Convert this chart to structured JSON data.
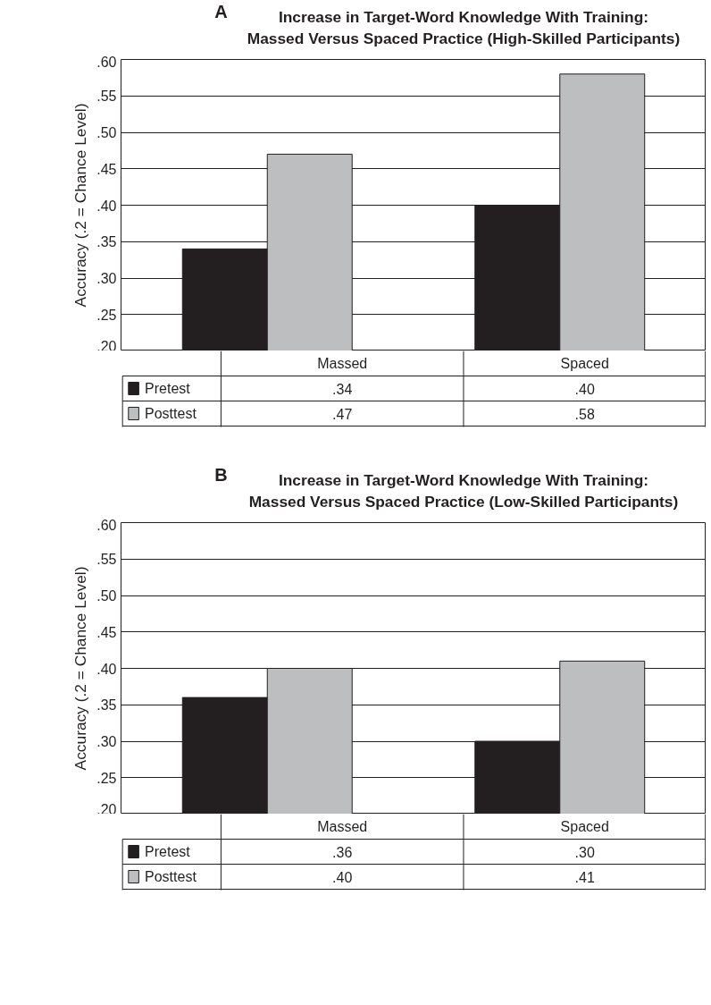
{
  "chart_data": [
    {
      "type": "bar",
      "title": "Increase in Target-Word Knowledge With Training: Massed Versus Spaced Practice (High-Skilled Participants)",
      "annotations": [
        "A"
      ],
      "ylabel": "Accuracy (.2 = Chance Level)",
      "categories": [
        "Massed",
        "Spaced"
      ],
      "series": [
        {
          "name": "Pretest",
          "color": "#231f20",
          "values": [
            0.34,
            0.4
          ],
          "value_labels": [
            ".34",
            ".40"
          ]
        },
        {
          "name": "Posttest",
          "color": "#bcbec0",
          "values": [
            0.47,
            0.58
          ],
          "value_labels": [
            ".47",
            ".58"
          ]
        }
      ],
      "ylim": [
        0.2,
        0.6
      ],
      "yticks": [
        {
          "value": 0.2,
          "label": ".20"
        },
        {
          "value": 0.25,
          "label": ".25"
        },
        {
          "value": 0.3,
          "label": ".30"
        },
        {
          "value": 0.35,
          "label": ".35"
        },
        {
          "value": 0.4,
          "label": ".40"
        },
        {
          "value": 0.45,
          "label": ".45"
        },
        {
          "value": 0.5,
          "label": ".50"
        },
        {
          "value": 0.55,
          "label": ".55"
        },
        {
          "value": 0.6,
          "label": ".60"
        }
      ],
      "grid": "y",
      "legend": "bottom left"
    },
    {
      "type": "bar",
      "title": "Increase in Target-Word Knowledge With Training: Massed Versus Spaced Practice (Low-Skilled Participants)",
      "annotations": [
        "B"
      ],
      "ylabel": "Accuracy (.2 = Chance Level)",
      "categories": [
        "Massed",
        "Spaced"
      ],
      "series": [
        {
          "name": "Pretest",
          "color": "#231f20",
          "values": [
            0.36,
            0.3
          ],
          "value_labels": [
            ".36",
            ".30"
          ]
        },
        {
          "name": "Posttest",
          "color": "#bcbec0",
          "values": [
            0.4,
            0.41
          ],
          "value_labels": [
            ".40",
            ".41"
          ]
        }
      ],
      "ylim": [
        0.2,
        0.6
      ],
      "yticks": [
        {
          "value": 0.2,
          "label": ".20"
        },
        {
          "value": 0.25,
          "label": ".25"
        },
        {
          "value": 0.3,
          "label": ".30"
        },
        {
          "value": 0.35,
          "label": ".35"
        },
        {
          "value": 0.4,
          "label": ".40"
        },
        {
          "value": 0.45,
          "label": ".45"
        },
        {
          "value": 0.5,
          "label": ".50"
        },
        {
          "value": 0.55,
          "label": ".55"
        },
        {
          "value": 0.6,
          "label": ".60"
        }
      ],
      "grid": "y",
      "legend": "bottom left"
    }
  ]
}
